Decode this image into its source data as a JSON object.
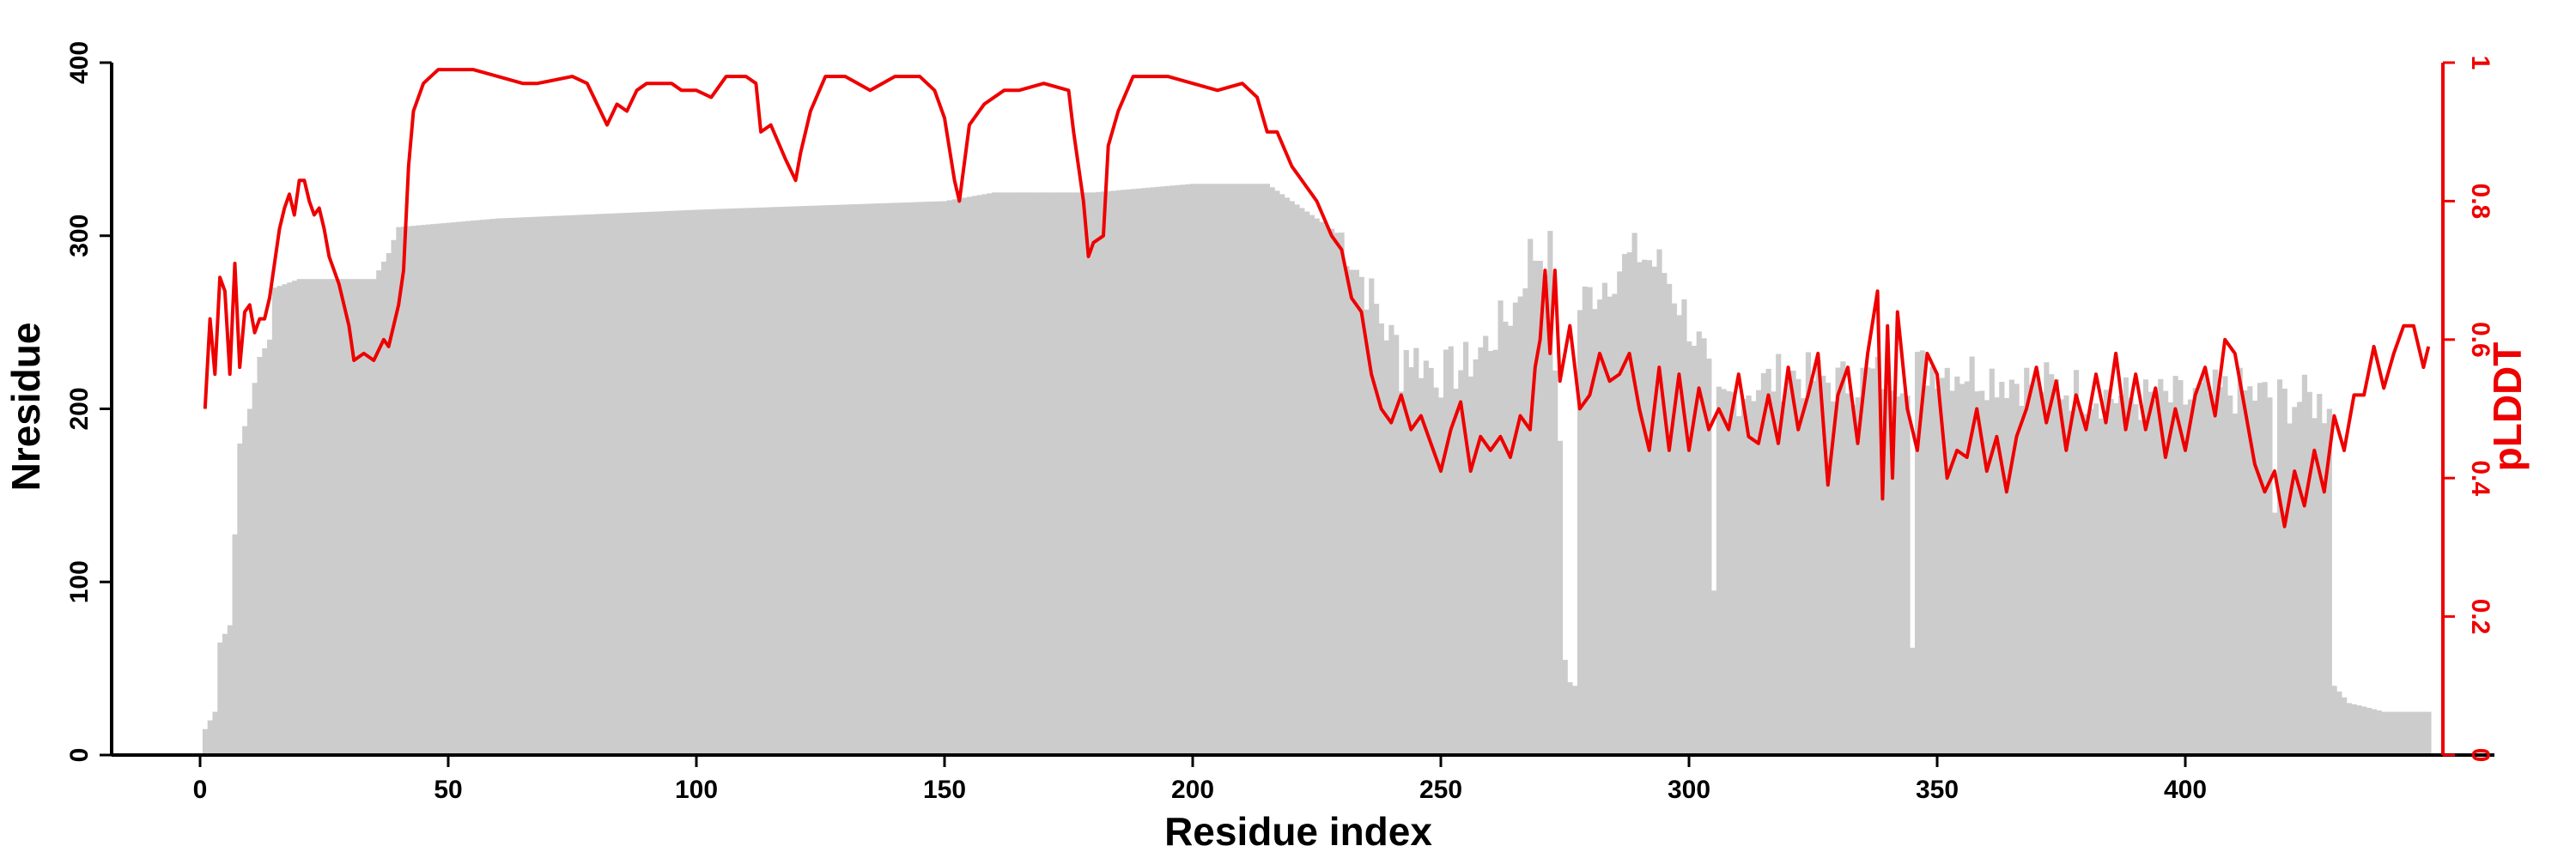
{
  "chart_data": {
    "type": "bar+line",
    "xlabel": "Residue index",
    "ylabel_left": "Nresidue",
    "ylabel_right": "pLDDT",
    "xlim": [
      -18,
      466
    ],
    "ylim_left": [
      0,
      400
    ],
    "ylim_right": [
      0,
      1
    ],
    "xticks": [
      0,
      50,
      100,
      150,
      200,
      250,
      300,
      350,
      400
    ],
    "yticks_left": [
      0,
      100,
      200,
      300,
      400
    ],
    "yticks_right": [
      0,
      0.2,
      0.4,
      0.6,
      0.8,
      1
    ],
    "grid": false,
    "colors": {
      "bars": "#cccccc",
      "line": "#ee0000",
      "axis": "#000000"
    },
    "nresidue_anchors": [
      [
        1,
        15
      ],
      [
        3,
        25
      ],
      [
        4,
        65
      ],
      [
        6,
        75
      ],
      [
        8,
        180
      ],
      [
        10,
        200
      ],
      [
        12,
        230
      ],
      [
        14,
        240
      ],
      [
        15,
        270
      ],
      [
        20,
        275
      ],
      [
        30,
        275
      ],
      [
        35,
        275
      ],
      [
        38,
        290
      ],
      [
        40,
        305
      ],
      [
        60,
        310
      ],
      [
        100,
        315
      ],
      [
        150,
        320
      ],
      [
        160,
        325
      ],
      [
        180,
        325
      ],
      [
        200,
        330
      ],
      [
        215,
        330
      ],
      [
        220,
        320
      ],
      [
        225,
        310
      ],
      [
        230,
        300
      ],
      [
        235,
        270
      ],
      [
        240,
        240
      ],
      [
        245,
        230
      ],
      [
        250,
        220
      ],
      [
        255,
        225
      ],
      [
        260,
        240
      ],
      [
        265,
        260
      ],
      [
        268,
        290
      ],
      [
        272,
        290
      ],
      [
        276,
        50
      ],
      [
        278,
        260
      ],
      [
        285,
        280
      ],
      [
        290,
        290
      ],
      [
        295,
        280
      ],
      [
        300,
        250
      ],
      [
        303,
        230
      ],
      [
        305,
        200
      ],
      [
        310,
        210
      ],
      [
        320,
        220
      ],
      [
        330,
        215
      ],
      [
        340,
        220
      ],
      [
        350,
        225
      ],
      [
        360,
        220
      ],
      [
        370,
        215
      ],
      [
        380,
        210
      ],
      [
        390,
        205
      ],
      [
        400,
        205
      ],
      [
        410,
        210
      ],
      [
        420,
        205
      ],
      [
        426,
        205
      ],
      [
        429,
        200
      ],
      [
        430,
        40
      ],
      [
        433,
        30
      ],
      [
        436,
        28
      ],
      [
        440,
        25
      ],
      [
        445,
        25
      ],
      [
        449,
        25
      ]
    ],
    "nresidue_dips": [
      [
        242,
        210
      ],
      [
        275,
        55
      ],
      [
        277,
        40
      ],
      [
        305,
        95
      ],
      [
        345,
        62
      ],
      [
        418,
        140
      ]
    ],
    "plddt_anchors": [
      [
        1,
        0.5
      ],
      [
        2,
        0.63
      ],
      [
        3,
        0.55
      ],
      [
        4,
        0.69
      ],
      [
        5,
        0.67
      ],
      [
        6,
        0.55
      ],
      [
        7,
        0.71
      ],
      [
        8,
        0.56
      ],
      [
        9,
        0.64
      ],
      [
        10,
        0.65
      ],
      [
        11,
        0.61
      ],
      [
        12,
        0.63
      ],
      [
        13,
        0.63
      ],
      [
        14,
        0.66
      ],
      [
        15,
        0.71
      ],
      [
        16,
        0.76
      ],
      [
        17,
        0.79
      ],
      [
        18,
        0.81
      ],
      [
        19,
        0.78
      ],
      [
        20,
        0.83
      ],
      [
        21,
        0.83
      ],
      [
        22,
        0.8
      ],
      [
        23,
        0.78
      ],
      [
        24,
        0.79
      ],
      [
        25,
        0.76
      ],
      [
        26,
        0.72
      ],
      [
        28,
        0.68
      ],
      [
        30,
        0.62
      ],
      [
        31,
        0.57
      ],
      [
        33,
        0.58
      ],
      [
        35,
        0.57
      ],
      [
        37,
        0.6
      ],
      [
        38,
        0.59
      ],
      [
        40,
        0.65
      ],
      [
        41,
        0.7
      ],
      [
        42,
        0.85
      ],
      [
        43,
        0.93
      ],
      [
        45,
        0.97
      ],
      [
        48,
        0.99
      ],
      [
        55,
        0.99
      ],
      [
        60,
        0.98
      ],
      [
        65,
        0.97
      ],
      [
        68,
        0.97
      ],
      [
        75,
        0.98
      ],
      [
        78,
        0.97
      ],
      [
        80,
        0.94
      ],
      [
        82,
        0.91
      ],
      [
        84,
        0.94
      ],
      [
        86,
        0.93
      ],
      [
        88,
        0.96
      ],
      [
        90,
        0.97
      ],
      [
        95,
        0.97
      ],
      [
        97,
        0.96
      ],
      [
        100,
        0.96
      ],
      [
        103,
        0.95
      ],
      [
        106,
        0.98
      ],
      [
        110,
        0.98
      ],
      [
        112,
        0.97
      ],
      [
        113,
        0.9
      ],
      [
        115,
        0.91
      ],
      [
        118,
        0.86
      ],
      [
        120,
        0.83
      ],
      [
        121,
        0.87
      ],
      [
        123,
        0.93
      ],
      [
        126,
        0.98
      ],
      [
        130,
        0.98
      ],
      [
        135,
        0.96
      ],
      [
        140,
        0.98
      ],
      [
        145,
        0.98
      ],
      [
        148,
        0.96
      ],
      [
        150,
        0.92
      ],
      [
        152,
        0.83
      ],
      [
        153,
        0.8
      ],
      [
        155,
        0.91
      ],
      [
        158,
        0.94
      ],
      [
        162,
        0.96
      ],
      [
        165,
        0.96
      ],
      [
        170,
        0.97
      ],
      [
        175,
        0.96
      ],
      [
        176,
        0.9
      ],
      [
        178,
        0.8
      ],
      [
        179,
        0.72
      ],
      [
        180,
        0.74
      ],
      [
        182,
        0.75
      ],
      [
        183,
        0.88
      ],
      [
        185,
        0.93
      ],
      [
        188,
        0.98
      ],
      [
        195,
        0.98
      ],
      [
        200,
        0.97
      ],
      [
        205,
        0.96
      ],
      [
        210,
        0.97
      ],
      [
        213,
        0.95
      ],
      [
        215,
        0.9
      ],
      [
        217,
        0.9
      ],
      [
        220,
        0.85
      ],
      [
        222,
        0.83
      ],
      [
        225,
        0.8
      ],
      [
        228,
        0.75
      ],
      [
        230,
        0.73
      ],
      [
        232,
        0.66
      ],
      [
        234,
        0.64
      ],
      [
        236,
        0.55
      ],
      [
        238,
        0.5
      ],
      [
        240,
        0.48
      ],
      [
        242,
        0.52
      ],
      [
        244,
        0.47
      ],
      [
        246,
        0.49
      ],
      [
        248,
        0.45
      ],
      [
        250,
        0.41
      ],
      [
        252,
        0.47
      ],
      [
        254,
        0.51
      ],
      [
        256,
        0.41
      ],
      [
        258,
        0.46
      ],
      [
        260,
        0.44
      ],
      [
        262,
        0.46
      ],
      [
        264,
        0.43
      ],
      [
        266,
        0.49
      ],
      [
        268,
        0.47
      ],
      [
        269,
        0.56
      ],
      [
        270,
        0.6
      ],
      [
        271,
        0.7
      ],
      [
        272,
        0.58
      ],
      [
        273,
        0.7
      ],
      [
        274,
        0.54
      ],
      [
        276,
        0.62
      ],
      [
        277,
        0.56
      ],
      [
        278,
        0.5
      ],
      [
        280,
        0.52
      ],
      [
        282,
        0.58
      ],
      [
        284,
        0.54
      ],
      [
        286,
        0.55
      ],
      [
        288,
        0.58
      ],
      [
        290,
        0.5
      ],
      [
        292,
        0.44
      ],
      [
        294,
        0.56
      ],
      [
        296,
        0.44
      ],
      [
        298,
        0.55
      ],
      [
        300,
        0.44
      ],
      [
        302,
        0.53
      ],
      [
        304,
        0.47
      ],
      [
        306,
        0.5
      ],
      [
        308,
        0.47
      ],
      [
        310,
        0.55
      ],
      [
        312,
        0.46
      ],
      [
        314,
        0.45
      ],
      [
        316,
        0.52
      ],
      [
        318,
        0.45
      ],
      [
        320,
        0.56
      ],
      [
        322,
        0.47
      ],
      [
        324,
        0.52
      ],
      [
        326,
        0.58
      ],
      [
        328,
        0.39
      ],
      [
        330,
        0.52
      ],
      [
        332,
        0.56
      ],
      [
        334,
        0.45
      ],
      [
        336,
        0.58
      ],
      [
        338,
        0.67
      ],
      [
        339,
        0.37
      ],
      [
        340,
        0.62
      ],
      [
        341,
        0.4
      ],
      [
        342,
        0.64
      ],
      [
        344,
        0.5
      ],
      [
        346,
        0.44
      ],
      [
        348,
        0.58
      ],
      [
        350,
        0.55
      ],
      [
        352,
        0.4
      ],
      [
        354,
        0.44
      ],
      [
        356,
        0.43
      ],
      [
        358,
        0.5
      ],
      [
        360,
        0.41
      ],
      [
        362,
        0.46
      ],
      [
        364,
        0.38
      ],
      [
        366,
        0.46
      ],
      [
        368,
        0.5
      ],
      [
        370,
        0.56
      ],
      [
        372,
        0.48
      ],
      [
        374,
        0.54
      ],
      [
        376,
        0.44
      ],
      [
        378,
        0.52
      ],
      [
        380,
        0.47
      ],
      [
        382,
        0.55
      ],
      [
        384,
        0.48
      ],
      [
        386,
        0.58
      ],
      [
        388,
        0.47
      ],
      [
        390,
        0.55
      ],
      [
        392,
        0.47
      ],
      [
        394,
        0.53
      ],
      [
        396,
        0.43
      ],
      [
        398,
        0.5
      ],
      [
        400,
        0.44
      ],
      [
        402,
        0.52
      ],
      [
        404,
        0.56
      ],
      [
        406,
        0.49
      ],
      [
        408,
        0.6
      ],
      [
        410,
        0.58
      ],
      [
        412,
        0.5
      ],
      [
        414,
        0.42
      ],
      [
        416,
        0.38
      ],
      [
        418,
        0.41
      ],
      [
        420,
        0.33
      ],
      [
        422,
        0.41
      ],
      [
        424,
        0.36
      ],
      [
        426,
        0.44
      ],
      [
        428,
        0.38
      ],
      [
        430,
        0.49
      ],
      [
        432,
        0.44
      ],
      [
        434,
        0.52
      ],
      [
        436,
        0.52
      ],
      [
        438,
        0.59
      ],
      [
        440,
        0.53
      ],
      [
        442,
        0.58
      ],
      [
        444,
        0.62
      ],
      [
        446,
        0.62
      ],
      [
        448,
        0.56
      ],
      [
        449,
        0.59
      ]
    ]
  }
}
